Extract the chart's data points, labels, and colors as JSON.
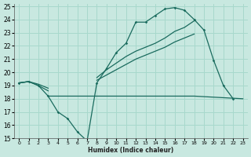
{
  "bg_color": "#c8e8e0",
  "grid_color": "#a8d8cc",
  "line_color": "#1a6b5e",
  "xlabel": "Humidex (Indice chaleur)",
  "xlim": [
    -0.5,
    23.5
  ],
  "ylim": [
    15,
    25.2
  ],
  "yticks": [
    15,
    16,
    17,
    18,
    19,
    20,
    21,
    22,
    23,
    24,
    25
  ],
  "xticks": [
    0,
    1,
    2,
    3,
    4,
    5,
    6,
    7,
    8,
    9,
    10,
    11,
    12,
    13,
    14,
    15,
    16,
    17,
    18,
    19,
    20,
    21,
    22,
    23
  ],
  "series1_x": [
    0,
    1,
    2,
    3,
    4,
    5,
    6,
    7,
    8,
    9,
    10,
    11,
    12,
    13,
    14,
    15,
    16,
    17,
    18,
    19,
    20,
    21,
    22
  ],
  "series1_y": [
    19.2,
    19.3,
    19.0,
    18.2,
    17.0,
    16.5,
    15.5,
    14.8,
    19.2,
    20.3,
    21.5,
    22.2,
    23.8,
    23.8,
    24.3,
    24.8,
    24.9,
    24.7,
    24.0,
    23.2,
    20.9,
    19.0,
    18.0
  ],
  "series2_x": [
    0,
    1,
    2,
    3,
    8,
    9,
    10,
    11,
    12,
    13,
    14,
    15,
    16,
    17,
    18
  ],
  "series2_y": [
    19.2,
    19.3,
    19.1,
    18.8,
    19.6,
    20.2,
    20.7,
    21.2,
    21.6,
    21.9,
    22.2,
    22.6,
    23.1,
    23.4,
    23.9
  ],
  "series3_x": [
    0,
    1,
    2,
    3,
    8,
    9,
    10,
    11,
    12,
    13,
    14,
    15,
    16,
    17,
    18
  ],
  "series3_y": [
    19.2,
    19.3,
    19.0,
    18.6,
    19.4,
    19.8,
    20.2,
    20.6,
    21.0,
    21.3,
    21.6,
    21.9,
    22.3,
    22.6,
    22.9
  ],
  "hline_x": [
    3,
    18,
    23
  ],
  "hline_y": [
    18.2,
    18.2,
    18.0
  ]
}
